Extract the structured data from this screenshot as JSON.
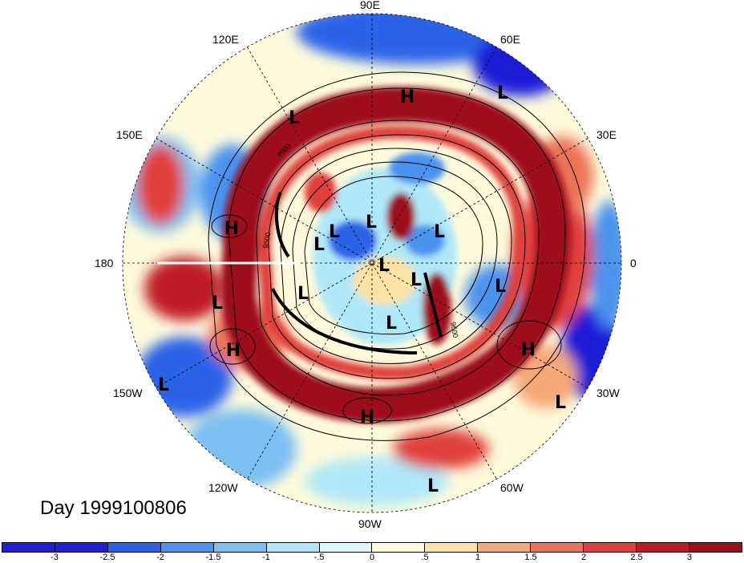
{
  "title": "Day 1999100806",
  "longitude_labels": {
    "n90e": "90E",
    "n120e": "120E",
    "n60e": "60E",
    "n150e": "150E",
    "n30e": "30E",
    "n180": "180",
    "n0": "0",
    "n150w": "150W",
    "n30w": "30W",
    "n120w": "120W",
    "n60w": "60W",
    "n90w": "90W"
  },
  "pressure_systems": [
    {
      "label": "H"
    },
    {
      "label": "L"
    },
    {
      "label": "L"
    },
    {
      "label": "H"
    },
    {
      "label": "L"
    },
    {
      "label": "L"
    },
    {
      "label": "L"
    },
    {
      "label": "L"
    },
    {
      "label": "L"
    },
    {
      "label": "L"
    },
    {
      "label": "L"
    },
    {
      "label": "L"
    },
    {
      "label": "L"
    },
    {
      "label": "H"
    },
    {
      "label": "H"
    },
    {
      "label": "L"
    },
    {
      "label": "H"
    },
    {
      "label": "L"
    },
    {
      "label": "L"
    },
    {
      "label": "L"
    }
  ],
  "contour_labels": [
    "9500",
    "9600",
    "9600"
  ],
  "colorbar": {
    "levels": [
      "-3",
      "-2.5",
      "-2",
      "-1.5",
      "-1",
      "-.5",
      "0",
      ".5",
      "1",
      "1.5",
      "2",
      "2.5",
      "3"
    ],
    "colors": [
      "#1f1fd6",
      "#2b63e8",
      "#4a93ee",
      "#7cc0f2",
      "#aee8f8",
      "#ddf6fb",
      "#fdfbdc",
      "#fbe3a6",
      "#f4a979",
      "#ec7356",
      "#e0403a",
      "#c01a26",
      "#9e0f1c"
    ]
  },
  "field_colors": {
    "strong_positive": "#9e0f1c",
    "positive": "#e0403a",
    "neutral": "#fdfbdc",
    "negative": "#4a93ee",
    "strong_negative": "#1f1fd6"
  }
}
